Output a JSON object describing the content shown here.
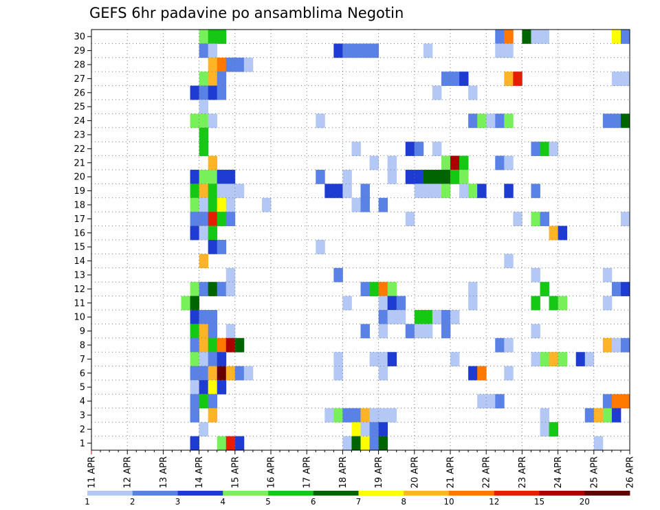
{
  "chart_data": {
    "type": "heatmap",
    "title": "GEFS 6hr padavine po ansamblima Negotin",
    "xlabel": "",
    "ylabel": "",
    "x_tick_labels": [
      "11 APR",
      "12 APR",
      "13 APR",
      "14 APR",
      "15 APR",
      "16 APR",
      "17 APR",
      "18 APR",
      "19 APR",
      "20 APR",
      "21 APR",
      "22 APR",
      "23 APR",
      "24 APR",
      "25 APR",
      "26 APR"
    ],
    "y_tick_labels": [
      "1",
      "2",
      "3",
      "4",
      "5",
      "6",
      "7",
      "8",
      "9",
      "10",
      "11",
      "12",
      "13",
      "14",
      "15",
      "16",
      "17",
      "18",
      "19",
      "20",
      "21",
      "22",
      "23",
      "24",
      "25",
      "26",
      "27",
      "28",
      "29",
      "30"
    ],
    "time_steps_6h": 60,
    "members": 30,
    "grid": true,
    "legend_placement": "bottom",
    "colorbar": {
      "labels": [
        "1",
        "2",
        "3",
        "4",
        "5",
        "6",
        "7",
        "8",
        "10",
        "12",
        "15",
        "20"
      ],
      "colors": [
        "#b4c8f5",
        "#5a82e6",
        "#1e3cd2",
        "#78f05a",
        "#14c814",
        "#006400",
        "#ffff00",
        "#ffb428",
        "#ff7800",
        "#e61e00",
        "#aa0000",
        "#640000"
      ]
    },
    "cells": [
      [
        30,
        12,
        3
      ],
      [
        30,
        13,
        4
      ],
      [
        30,
        14,
        4
      ],
      [
        30,
        45,
        1
      ],
      [
        30,
        46,
        8
      ],
      [
        30,
        48,
        5
      ],
      [
        30,
        49,
        0
      ],
      [
        30,
        50,
        0
      ],
      [
        30,
        58,
        6
      ],
      [
        30,
        59,
        1
      ],
      [
        29,
        12,
        1
      ],
      [
        29,
        13,
        0
      ],
      [
        29,
        27,
        2
      ],
      [
        29,
        28,
        1
      ],
      [
        29,
        29,
        1
      ],
      [
        29,
        30,
        1
      ],
      [
        29,
        31,
        1
      ],
      [
        29,
        37,
        0
      ],
      [
        29,
        45,
        0
      ],
      [
        29,
        46,
        0
      ],
      [
        28,
        13,
        7
      ],
      [
        28,
        14,
        8
      ],
      [
        28,
        15,
        1
      ],
      [
        28,
        16,
        1
      ],
      [
        28,
        17,
        0
      ],
      [
        27,
        12,
        3
      ],
      [
        27,
        13,
        7
      ],
      [
        27,
        14,
        1
      ],
      [
        27,
        39,
        1
      ],
      [
        27,
        40,
        1
      ],
      [
        27,
        41,
        2
      ],
      [
        27,
        46,
        7
      ],
      [
        27,
        47,
        9
      ],
      [
        27,
        58,
        0
      ],
      [
        27,
        59,
        0
      ],
      [
        26,
        11,
        2
      ],
      [
        26,
        12,
        1
      ],
      [
        26,
        13,
        2
      ],
      [
        26,
        14,
        1
      ],
      [
        26,
        38,
        0
      ],
      [
        26,
        42,
        0
      ],
      [
        25,
        12,
        0
      ],
      [
        24,
        11,
        3
      ],
      [
        24,
        12,
        3
      ],
      [
        24,
        13,
        0
      ],
      [
        24,
        25,
        0
      ],
      [
        24,
        42,
        1
      ],
      [
        24,
        43,
        3
      ],
      [
        24,
        44,
        0
      ],
      [
        24,
        45,
        1
      ],
      [
        24,
        46,
        3
      ],
      [
        24,
        57,
        1
      ],
      [
        24,
        58,
        1
      ],
      [
        24,
        59,
        5
      ],
      [
        23,
        12,
        4
      ],
      [
        22,
        12,
        4
      ],
      [
        22,
        29,
        0
      ],
      [
        22,
        35,
        2
      ],
      [
        22,
        36,
        1
      ],
      [
        22,
        38,
        0
      ],
      [
        22,
        49,
        1
      ],
      [
        22,
        50,
        4
      ],
      [
        22,
        51,
        0
      ],
      [
        21,
        13,
        7
      ],
      [
        21,
        31,
        0
      ],
      [
        21,
        33,
        0
      ],
      [
        21,
        39,
        3
      ],
      [
        21,
        40,
        10
      ],
      [
        21,
        41,
        4
      ],
      [
        21,
        45,
        1
      ],
      [
        21,
        46,
        0
      ],
      [
        20,
        11,
        2
      ],
      [
        20,
        12,
        3
      ],
      [
        20,
        13,
        3
      ],
      [
        20,
        14,
        2
      ],
      [
        20,
        15,
        2
      ],
      [
        20,
        25,
        1
      ],
      [
        20,
        28,
        0
      ],
      [
        20,
        33,
        0
      ],
      [
        20,
        35,
        2
      ],
      [
        20,
        36,
        2
      ],
      [
        20,
        37,
        5
      ],
      [
        20,
        38,
        5
      ],
      [
        20,
        39,
        5
      ],
      [
        20,
        40,
        4
      ],
      [
        20,
        41,
        3
      ],
      [
        19,
        11,
        4
      ],
      [
        19,
        12,
        7
      ],
      [
        19,
        13,
        4
      ],
      [
        19,
        14,
        0
      ],
      [
        19,
        15,
        0
      ],
      [
        19,
        16,
        0
      ],
      [
        19,
        26,
        2
      ],
      [
        19,
        27,
        2
      ],
      [
        19,
        28,
        0
      ],
      [
        19,
        30,
        1
      ],
      [
        19,
        36,
        0
      ],
      [
        19,
        37,
        0
      ],
      [
        19,
        38,
        0
      ],
      [
        19,
        39,
        3
      ],
      [
        19,
        41,
        0
      ],
      [
        19,
        42,
        3
      ],
      [
        19,
        43,
        2
      ],
      [
        19,
        46,
        2
      ],
      [
        19,
        49,
        1
      ],
      [
        18,
        11,
        3
      ],
      [
        18,
        12,
        0
      ],
      [
        18,
        13,
        4
      ],
      [
        18,
        14,
        6
      ],
      [
        18,
        15,
        0
      ],
      [
        18,
        19,
        0
      ],
      [
        18,
        29,
        0
      ],
      [
        18,
        30,
        1
      ],
      [
        18,
        32,
        1
      ],
      [
        17,
        11,
        1
      ],
      [
        17,
        12,
        1
      ],
      [
        17,
        13,
        9
      ],
      [
        17,
        14,
        4
      ],
      [
        17,
        15,
        1
      ],
      [
        17,
        35,
        0
      ],
      [
        17,
        47,
        0
      ],
      [
        17,
        49,
        3
      ],
      [
        17,
        50,
        1
      ],
      [
        17,
        59,
        0
      ],
      [
        16,
        11,
        2
      ],
      [
        16,
        12,
        0
      ],
      [
        16,
        13,
        4
      ],
      [
        16,
        51,
        7
      ],
      [
        16,
        52,
        2
      ],
      [
        15,
        13,
        2
      ],
      [
        15,
        14,
        1
      ],
      [
        15,
        25,
        0
      ],
      [
        14,
        12,
        7
      ],
      [
        14,
        46,
        0
      ],
      [
        13,
        15,
        0
      ],
      [
        13,
        27,
        1
      ],
      [
        13,
        49,
        0
      ],
      [
        13,
        57,
        0
      ],
      [
        12,
        11,
        3
      ],
      [
        12,
        12,
        1
      ],
      [
        12,
        13,
        5
      ],
      [
        12,
        14,
        1
      ],
      [
        12,
        15,
        0
      ],
      [
        12,
        30,
        1
      ],
      [
        12,
        31,
        4
      ],
      [
        12,
        32,
        8
      ],
      [
        12,
        33,
        3
      ],
      [
        12,
        42,
        0
      ],
      [
        12,
        50,
        4
      ],
      [
        12,
        58,
        1
      ],
      [
        12,
        59,
        2
      ],
      [
        11,
        10,
        3
      ],
      [
        11,
        11,
        5
      ],
      [
        11,
        28,
        0
      ],
      [
        11,
        32,
        0
      ],
      [
        11,
        33,
        2
      ],
      [
        11,
        34,
        1
      ],
      [
        11,
        42,
        0
      ],
      [
        11,
        49,
        4
      ],
      [
        11,
        51,
        4
      ],
      [
        11,
        52,
        3
      ],
      [
        11,
        57,
        0
      ],
      [
        10,
        11,
        2
      ],
      [
        10,
        12,
        1
      ],
      [
        10,
        13,
        1
      ],
      [
        10,
        32,
        1
      ],
      [
        10,
        33,
        0
      ],
      [
        10,
        34,
        0
      ],
      [
        10,
        36,
        4
      ],
      [
        10,
        37,
        4
      ],
      [
        10,
        38,
        0
      ],
      [
        10,
        39,
        1
      ],
      [
        10,
        40,
        0
      ],
      [
        9,
        11,
        4
      ],
      [
        9,
        12,
        7
      ],
      [
        9,
        13,
        1
      ],
      [
        9,
        15,
        0
      ],
      [
        9,
        30,
        1
      ],
      [
        9,
        32,
        0
      ],
      [
        9,
        35,
        1
      ],
      [
        9,
        36,
        0
      ],
      [
        9,
        37,
        0
      ],
      [
        9,
        39,
        1
      ],
      [
        9,
        49,
        0
      ],
      [
        8,
        11,
        1
      ],
      [
        8,
        12,
        7
      ],
      [
        8,
        13,
        4
      ],
      [
        8,
        14,
        8
      ],
      [
        8,
        15,
        10
      ],
      [
        8,
        16,
        5
      ],
      [
        8,
        45,
        1
      ],
      [
        8,
        46,
        0
      ],
      [
        8,
        57,
        7
      ],
      [
        8,
        58,
        0
      ],
      [
        8,
        59,
        1
      ],
      [
        7,
        11,
        3
      ],
      [
        7,
        12,
        0
      ],
      [
        7,
        13,
        1
      ],
      [
        7,
        14,
        2
      ],
      [
        7,
        27,
        0
      ],
      [
        7,
        31,
        0
      ],
      [
        7,
        32,
        0
      ],
      [
        7,
        33,
        2
      ],
      [
        7,
        40,
        0
      ],
      [
        7,
        49,
        0
      ],
      [
        7,
        50,
        3
      ],
      [
        7,
        51,
        7
      ],
      [
        7,
        52,
        3
      ],
      [
        7,
        54,
        2
      ],
      [
        7,
        55,
        0
      ],
      [
        6,
        11,
        1
      ],
      [
        6,
        12,
        1
      ],
      [
        6,
        13,
        7
      ],
      [
        6,
        14,
        11
      ],
      [
        6,
        15,
        7
      ],
      [
        6,
        16,
        1
      ],
      [
        6,
        17,
        0
      ],
      [
        6,
        27,
        0
      ],
      [
        6,
        32,
        0
      ],
      [
        6,
        42,
        2
      ],
      [
        6,
        43,
        8
      ],
      [
        6,
        46,
        0
      ],
      [
        5,
        11,
        0
      ],
      [
        5,
        12,
        2
      ],
      [
        5,
        13,
        6
      ],
      [
        5,
        14,
        2
      ],
      [
        4,
        11,
        1
      ],
      [
        4,
        12,
        4
      ],
      [
        4,
        13,
        1
      ],
      [
        4,
        43,
        0
      ],
      [
        4,
        44,
        0
      ],
      [
        4,
        45,
        1
      ],
      [
        4,
        57,
        1
      ],
      [
        4,
        58,
        8
      ],
      [
        4,
        59,
        8
      ],
      [
        3,
        11,
        1
      ],
      [
        3,
        13,
        7
      ],
      [
        3,
        26,
        0
      ],
      [
        3,
        27,
        3
      ],
      [
        3,
        28,
        1
      ],
      [
        3,
        29,
        1
      ],
      [
        3,
        30,
        7
      ],
      [
        3,
        31,
        0
      ],
      [
        3,
        32,
        0
      ],
      [
        3,
        33,
        0
      ],
      [
        3,
        50,
        0
      ],
      [
        3,
        55,
        1
      ],
      [
        3,
        56,
        7
      ],
      [
        3,
        57,
        3
      ],
      [
        3,
        58,
        2
      ],
      [
        2,
        12,
        0
      ],
      [
        2,
        29,
        6
      ],
      [
        2,
        30,
        0
      ],
      [
        2,
        31,
        1
      ],
      [
        2,
        32,
        2
      ],
      [
        2,
        50,
        0
      ],
      [
        2,
        51,
        4
      ],
      [
        1,
        11,
        2
      ],
      [
        1,
        14,
        3
      ],
      [
        1,
        15,
        9
      ],
      [
        1,
        16,
        2
      ],
      [
        1,
        28,
        0
      ],
      [
        1,
        29,
        5
      ],
      [
        1,
        30,
        6
      ],
      [
        1,
        31,
        1
      ],
      [
        1,
        32,
        5
      ],
      [
        1,
        56,
        0
      ]
    ]
  }
}
